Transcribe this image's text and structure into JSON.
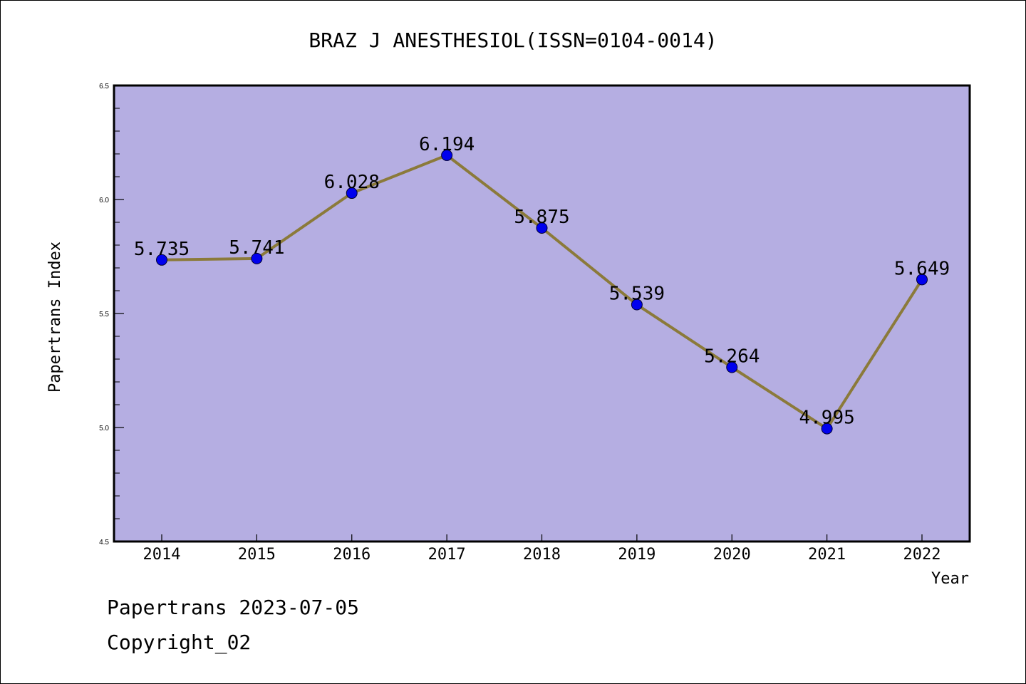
{
  "chart_data": {
    "type": "line",
    "title": "BRAZ J ANESTHESIOL(ISSN=0104-0014)",
    "xlabel": "Year",
    "ylabel": "Papertrans Index",
    "ylim": [
      4.5,
      6.5
    ],
    "yticks": [
      "4.5",
      "5.0",
      "5.5",
      "6.0",
      "6.5"
    ],
    "categories": [
      "2014",
      "2015",
      "2016",
      "2017",
      "2018",
      "2019",
      "2020",
      "2021",
      "2022"
    ],
    "series": [
      {
        "values": [
          5.735,
          5.741,
          6.028,
          6.194,
          5.875,
          5.539,
          5.264,
          4.995,
          5.649
        ],
        "labels": [
          "5.735",
          "5.741",
          "6.028",
          "6.194",
          "5.875",
          "5.539",
          "5.264",
          "4.995",
          "5.649"
        ]
      }
    ],
    "grid": false,
    "colors": {
      "plot_background": "#b5aee2",
      "line": "#8b7a3a",
      "marker": "#0000ee"
    }
  },
  "footer": {
    "line1": "Papertrans 2023-07-05",
    "line2": "Copyright_02"
  }
}
